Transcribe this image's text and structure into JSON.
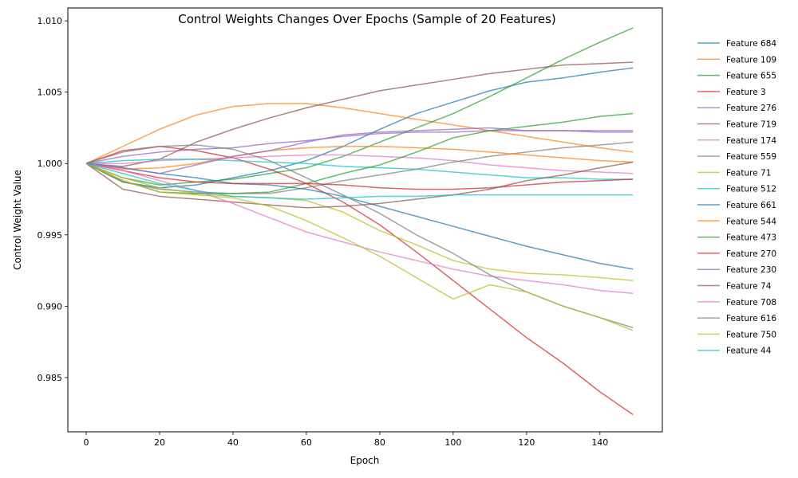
{
  "chart_data": {
    "type": "line",
    "title": "Control Weights Changes Over Epochs (Sample of 20 Features)",
    "xlabel": "Epoch",
    "ylabel": "Control Weight Value",
    "xlim": [
      -5,
      157
    ],
    "ylim": [
      0.9812,
      1.0109
    ],
    "xticks": [
      0,
      20,
      40,
      60,
      80,
      100,
      120,
      140
    ],
    "yticks": [
      0.985,
      0.99,
      0.995,
      1.0,
      1.005,
      1.01
    ],
    "ytick_labels": [
      "0.985",
      "0.990",
      "0.995",
      "1.000",
      "1.005",
      "1.010"
    ],
    "grid": false,
    "legend_position": "outside-right",
    "epochs_range": [
      0,
      149
    ],
    "series": [
      {
        "name": "Feature 684",
        "color": "#1f77b4",
        "x": [
          0,
          10,
          20,
          30,
          40,
          50,
          60,
          70,
          80,
          90,
          100,
          110,
          120,
          130,
          140,
          149
        ],
        "values": [
          1.0,
          0.9987,
          0.9983,
          0.9985,
          0.999,
          0.9995,
          1.0002,
          1.0012,
          1.0024,
          1.0035,
          1.0043,
          1.0051,
          1.0057,
          1.006,
          1.0064,
          1.0067
        ]
      },
      {
        "name": "Feature 109",
        "color": "#ff7f0e",
        "x": [
          0,
          10,
          20,
          30,
          40,
          50,
          60,
          70,
          80,
          90,
          100,
          110,
          120,
          130,
          140,
          149
        ],
        "values": [
          1.0,
          1.0012,
          1.0024,
          1.0034,
          1.004,
          1.0042,
          1.0042,
          1.0039,
          1.0035,
          1.0031,
          1.0027,
          1.0023,
          1.0019,
          1.0015,
          1.0011,
          1.0008
        ]
      },
      {
        "name": "Feature 655",
        "color": "#2ca02c",
        "x": [
          0,
          10,
          20,
          30,
          40,
          50,
          60,
          70,
          80,
          90,
          100,
          110,
          120,
          130,
          140,
          149
        ],
        "values": [
          1.0,
          0.999,
          0.9985,
          0.9987,
          0.9989,
          0.9993,
          0.9997,
          1.0005,
          1.0015,
          1.0025,
          1.0035,
          1.0047,
          1.006,
          1.0073,
          1.0085,
          1.0095
        ]
      },
      {
        "name": "Feature 3",
        "color": "#d62728",
        "x": [
          0,
          10,
          20,
          30,
          40,
          50,
          60,
          70,
          80,
          90,
          100,
          110,
          120,
          130,
          140,
          149
        ],
        "values": [
          1.0,
          1.0009,
          1.0012,
          1.0009,
          1.0004,
          0.9996,
          0.9986,
          0.9973,
          0.9957,
          0.9938,
          0.9918,
          0.9898,
          0.9878,
          0.986,
          0.984,
          0.9824
        ]
      },
      {
        "name": "Feature 276",
        "color": "#9467bd",
        "x": [
          0,
          10,
          20,
          30,
          40,
          50,
          60,
          70,
          80,
          90,
          100,
          110,
          120,
          130,
          140,
          149
        ],
        "values": [
          1.0,
          1.0005,
          1.0008,
          1.001,
          1.0011,
          1.0014,
          1.0016,
          1.0019,
          1.0021,
          1.0022,
          1.0022,
          1.0023,
          1.0023,
          1.0023,
          1.0023,
          1.0023
        ]
      },
      {
        "name": "Feature 719",
        "color": "#8c564b",
        "x": [
          0,
          10,
          20,
          30,
          40,
          50,
          60,
          70,
          80,
          90,
          100,
          110,
          120,
          130,
          140,
          149
        ],
        "values": [
          1.0,
          0.9998,
          1.0003,
          1.0015,
          1.0024,
          1.0032,
          1.0039,
          1.0045,
          1.0051,
          1.0055,
          1.0059,
          1.0063,
          1.0066,
          1.0069,
          1.007,
          1.0071
        ]
      },
      {
        "name": "Feature 174",
        "color": "#e377c2",
        "x": [
          0,
          10,
          20,
          30,
          40,
          50,
          60,
          70,
          80,
          90,
          100,
          110,
          120,
          130,
          140,
          149
        ],
        "values": [
          1.0,
          1.0,
          1.0002,
          1.0003,
          1.0004,
          1.0005,
          1.0006,
          1.0006,
          1.0005,
          1.0004,
          1.0002,
          0.9999,
          0.9997,
          0.9995,
          0.9994,
          0.9993
        ]
      },
      {
        "name": "Feature 559",
        "color": "#7f7f7f",
        "x": [
          0,
          10,
          20,
          30,
          40,
          50,
          60,
          70,
          80,
          90,
          100,
          110,
          120,
          130,
          140,
          149
        ],
        "values": [
          1.0,
          0.9987,
          0.9982,
          0.998,
          0.9979,
          0.9979,
          0.9983,
          0.9988,
          0.9992,
          0.9996,
          1.0001,
          1.0005,
          1.0008,
          1.0011,
          1.0013,
          1.0015
        ]
      },
      {
        "name": "Feature 71",
        "color": "#bcbd22",
        "x": [
          0,
          10,
          20,
          30,
          40,
          50,
          60,
          70,
          80,
          90,
          100,
          110,
          120,
          130,
          140,
          149
        ],
        "values": [
          1.0,
          0.999,
          0.9983,
          0.9979,
          0.9977,
          0.9976,
          0.9974,
          0.9966,
          0.9953,
          0.9943,
          0.9932,
          0.9926,
          0.9923,
          0.9922,
          0.992,
          0.9918
        ]
      },
      {
        "name": "Feature 512",
        "color": "#17becf",
        "x": [
          0,
          10,
          20,
          30,
          40,
          50,
          60,
          70,
          80,
          90,
          100,
          110,
          120,
          130,
          140,
          149
        ],
        "values": [
          1.0,
          1.0002,
          1.0003,
          1.0003,
          1.0002,
          1.0001,
          1.0,
          0.9998,
          0.9997,
          0.9996,
          0.9994,
          0.9992,
          0.999,
          0.999,
          0.9989,
          0.9989
        ]
      },
      {
        "name": "Feature 661",
        "color": "#1f77b4",
        "x": [
          0,
          10,
          20,
          30,
          40,
          50,
          60,
          70,
          80,
          90,
          100,
          110,
          120,
          130,
          140,
          149
        ],
        "values": [
          1.0,
          0.9997,
          0.9993,
          0.999,
          0.9986,
          0.9985,
          0.9982,
          0.9977,
          0.997,
          0.9963,
          0.9956,
          0.9949,
          0.9942,
          0.9936,
          0.993,
          0.9926
        ]
      },
      {
        "name": "Feature 544",
        "color": "#ff7f0e",
        "x": [
          0,
          10,
          20,
          30,
          40,
          50,
          60,
          70,
          80,
          90,
          100,
          110,
          120,
          130,
          140,
          149
        ],
        "values": [
          1.0,
          0.9996,
          0.9997,
          1.0,
          1.0005,
          1.0009,
          1.0011,
          1.0012,
          1.0012,
          1.0011,
          1.001,
          1.0008,
          1.0006,
          1.0004,
          1.0002,
          1.0001
        ]
      },
      {
        "name": "Feature 473",
        "color": "#2ca02c",
        "x": [
          0,
          10,
          20,
          30,
          40,
          50,
          60,
          70,
          80,
          90,
          100,
          110,
          120,
          130,
          140,
          149
        ],
        "values": [
          1.0,
          0.9988,
          0.998,
          0.9979,
          0.9979,
          0.998,
          0.9986,
          0.9993,
          0.9999,
          1.0008,
          1.0018,
          1.0023,
          1.0026,
          1.0029,
          1.0033,
          1.0035
        ]
      },
      {
        "name": "Feature 270",
        "color": "#d62728",
        "x": [
          0,
          10,
          20,
          30,
          40,
          50,
          60,
          70,
          80,
          90,
          100,
          110,
          120,
          130,
          140,
          149
        ],
        "values": [
          1.0,
          0.9995,
          0.999,
          0.9987,
          0.9986,
          0.9986,
          0.9986,
          0.9985,
          0.9983,
          0.9982,
          0.9982,
          0.9983,
          0.9985,
          0.9987,
          0.9988,
          0.9989
        ]
      },
      {
        "name": "Feature 230",
        "color": "#9467bd",
        "x": [
          0,
          10,
          20,
          30,
          40,
          50,
          60,
          70,
          80,
          90,
          100,
          110,
          120,
          130,
          140,
          149
        ],
        "values": [
          1.0,
          0.9997,
          0.9993,
          0.9999,
          1.0005,
          1.0009,
          1.0015,
          1.002,
          1.0022,
          1.0023,
          1.0024,
          1.0025,
          1.0023,
          1.0023,
          1.0022,
          1.0022
        ]
      },
      {
        "name": "Feature 74",
        "color": "#8c564b",
        "x": [
          0,
          10,
          20,
          30,
          40,
          50,
          60,
          70,
          80,
          90,
          100,
          110,
          120,
          130,
          140,
          149
        ],
        "values": [
          1.0,
          0.9982,
          0.9977,
          0.9975,
          0.9973,
          0.9971,
          0.9969,
          0.997,
          0.9972,
          0.9975,
          0.9978,
          0.9982,
          0.9988,
          0.9992,
          0.9997,
          1.0001
        ]
      },
      {
        "name": "Feature 708",
        "color": "#e377c2",
        "x": [
          0,
          10,
          20,
          30,
          40,
          50,
          60,
          70,
          80,
          90,
          100,
          110,
          120,
          130,
          140,
          149
        ],
        "values": [
          1.0,
          0.9995,
          0.9988,
          0.9981,
          0.9972,
          0.9962,
          0.9952,
          0.9945,
          0.9938,
          0.9932,
          0.9926,
          0.9921,
          0.9918,
          0.9915,
          0.9911,
          0.9909
        ]
      },
      {
        "name": "Feature 616",
        "color": "#7f7f7f",
        "x": [
          0,
          10,
          20,
          30,
          40,
          50,
          60,
          70,
          80,
          90,
          100,
          110,
          120,
          130,
          140,
          149
        ],
        "values": [
          1.0,
          1.0008,
          1.0012,
          1.0013,
          1.001,
          1.0002,
          0.999,
          0.9978,
          0.9965,
          0.995,
          0.9937,
          0.9922,
          0.991,
          0.99,
          0.9892,
          0.9885
        ]
      },
      {
        "name": "Feature 750",
        "color": "#bcbd22",
        "x": [
          0,
          10,
          20,
          30,
          40,
          50,
          60,
          70,
          80,
          90,
          100,
          110,
          120,
          130,
          140,
          149
        ],
        "values": [
          1.0,
          0.9988,
          0.998,
          0.9978,
          0.9976,
          0.997,
          0.996,
          0.9948,
          0.9935,
          0.992,
          0.9905,
          0.9915,
          0.991,
          0.99,
          0.9892,
          0.9883
        ]
      },
      {
        "name": "Feature 44",
        "color": "#17becf",
        "x": [
          0,
          10,
          20,
          30,
          40,
          50,
          60,
          70,
          80,
          90,
          100,
          110,
          120,
          130,
          140,
          149
        ],
        "values": [
          1.0,
          0.9993,
          0.9986,
          0.9981,
          0.9977,
          0.9976,
          0.9975,
          0.9976,
          0.9977,
          0.9977,
          0.9978,
          0.9978,
          0.9978,
          0.9978,
          0.9978,
          0.9978
        ]
      }
    ]
  }
}
